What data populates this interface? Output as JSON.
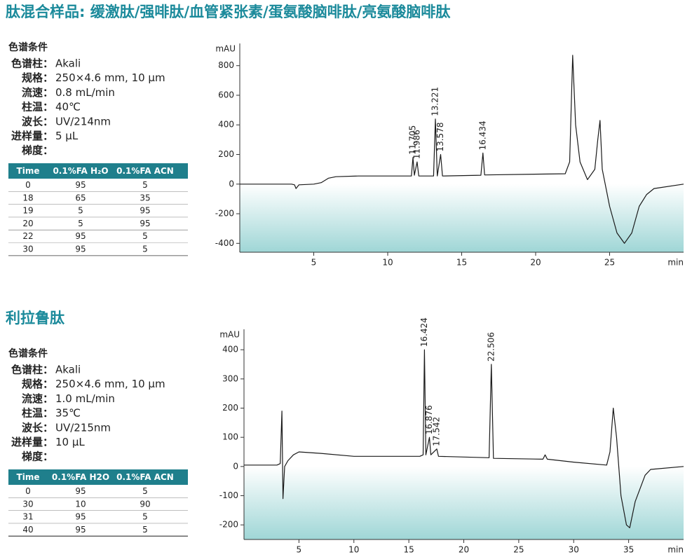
{
  "sections": [
    {
      "title": "肽混合样品: 缓激肽/强啡肽/血管紧张素/蛋氨酸脑啡肽/亮氨酸脑啡肽",
      "conditions_title": "色谱条件",
      "conditions": [
        {
          "label": "色谱柱：",
          "value": "Akali"
        },
        {
          "label": "规格：",
          "value": "250×4.6 mm, 10 µm"
        },
        {
          "label": "流速：",
          "value": "0.8 mL/min"
        },
        {
          "label": "柱温：",
          "value": "40℃"
        },
        {
          "label": "波长：",
          "value": "UV/214nm"
        },
        {
          "label": "进样量：",
          "value": "5 µL"
        },
        {
          "label": "梯度："
        }
      ],
      "table": {
        "header": [
          "Time",
          "0.1%FA H₂O",
          "0.1%FA ACN"
        ],
        "rows": [
          [
            0,
            95,
            5
          ],
          [
            18,
            65,
            35
          ],
          [
            19,
            5,
            95
          ],
          [
            20,
            5,
            95
          ],
          [
            22,
            95,
            5
          ],
          [
            30,
            95,
            5
          ]
        ]
      }
    },
    {
      "title": "利拉鲁肽",
      "conditions_title": "色谱条件",
      "conditions": [
        {
          "label": "色谱柱：",
          "value": "Akali"
        },
        {
          "label": "规格：",
          "value": "250×4.6 mm, 10 µm"
        },
        {
          "label": "流速：",
          "value": "1.0 mL/min"
        },
        {
          "label": "柱温：",
          "value": "35℃"
        },
        {
          "label": "波长：",
          "value": "UV/215nm"
        },
        {
          "label": "进样量：",
          "value": "10 µL"
        },
        {
          "label": "梯度："
        }
      ],
      "table": {
        "header": [
          "Time",
          "0.1%FA H2O",
          "0.1%FA ACN"
        ],
        "rows": [
          [
            0,
            95,
            5
          ],
          [
            30,
            10,
            90
          ],
          [
            31,
            95,
            5
          ],
          [
            40,
            95,
            5
          ]
        ]
      }
    }
  ],
  "chart_data": [
    {
      "type": "line",
      "y_label": "mAU",
      "x_label": "min",
      "color": "#1a1a1a",
      "x": [
        0,
        3.5,
        3.7,
        3.8,
        4,
        5,
        5.5,
        6,
        6.5,
        8,
        11,
        11.6,
        11.705,
        11.8,
        11.986,
        12.1,
        13.1,
        13.221,
        13.35,
        13.578,
        13.7,
        16.3,
        16.434,
        16.55,
        22,
        22.3,
        22.5,
        22.7,
        23,
        23.5,
        24,
        24.2,
        24.35,
        24.5,
        24.7,
        25,
        25.5,
        26,
        26.5,
        27,
        27.5,
        28,
        30
      ],
      "values": [
        0,
        0,
        -5,
        -30,
        -5,
        0,
        10,
        40,
        50,
        55,
        55,
        55,
        180,
        60,
        150,
        55,
        55,
        440,
        55,
        200,
        55,
        60,
        210,
        62,
        70,
        150,
        870,
        400,
        150,
        30,
        100,
        300,
        430,
        100,
        0,
        -150,
        -330,
        -400,
        -330,
        -150,
        -70,
        -30,
        0
      ],
      "peak_labels": [
        11.705,
        11.986,
        13.221,
        13.578,
        16.434
      ],
      "xlim": [
        0,
        30
      ],
      "xticks": [
        5,
        10,
        15,
        20,
        25
      ],
      "ylim": [
        -460,
        950
      ],
      "yticks": [
        -400,
        -200,
        0,
        200,
        400,
        600,
        800
      ]
    },
    {
      "type": "line",
      "y_label": "mAU",
      "x_label": "min",
      "color": "#1a1a1a",
      "x": [
        0,
        3,
        3.3,
        3.45,
        3.55,
        3.7,
        4,
        4.5,
        5,
        7,
        10,
        16,
        16.3,
        16.424,
        16.55,
        16.876,
        17,
        17.542,
        17.7,
        22.3,
        22.506,
        22.7,
        27.2,
        27.4,
        27.6,
        30,
        33,
        33.3,
        33.6,
        33.9,
        34.3,
        34.8,
        35.1,
        35.6,
        36.5,
        37,
        40
      ],
      "values": [
        5,
        5,
        10,
        190,
        -110,
        0,
        20,
        40,
        50,
        45,
        35,
        35,
        40,
        400,
        40,
        100,
        40,
        60,
        35,
        30,
        350,
        28,
        25,
        40,
        25,
        15,
        5,
        50,
        200,
        100,
        -100,
        -200,
        -210,
        -120,
        -30,
        -10,
        0
      ],
      "peak_labels": [
        16.424,
        16.876,
        17.542,
        22.506
      ],
      "xlim": [
        0,
        40
      ],
      "xticks": [
        5,
        10,
        15,
        20,
        25,
        30,
        35
      ],
      "ylim": [
        -250,
        470
      ],
      "yticks": [
        -200,
        -100,
        0,
        100,
        200,
        300,
        400
      ]
    }
  ]
}
